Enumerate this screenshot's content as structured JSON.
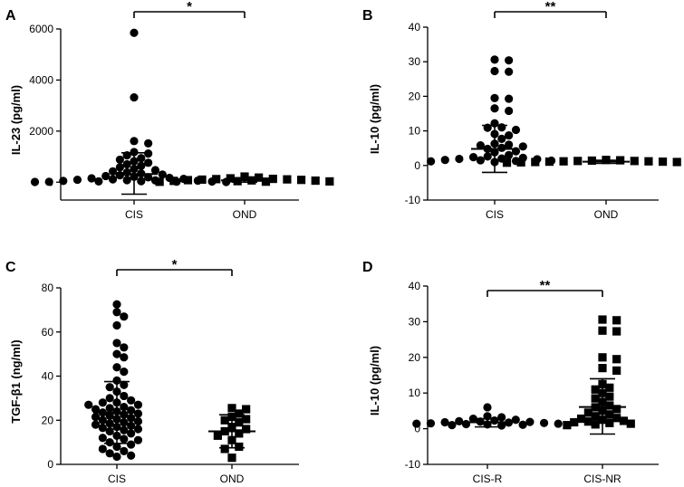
{
  "chart_data": [
    {
      "panel": "A",
      "type": "scatter",
      "title": "",
      "xlabel": "",
      "ylabel": "IL-23 (pg/ml)",
      "ylim": [
        -700,
        6000
      ],
      "yticks": [
        0,
        2000,
        4000,
        6000
      ],
      "groups": [
        "CIS",
        "OND"
      ],
      "marker": [
        "circle",
        "square"
      ],
      "significance": "*",
      "stats": [
        {
          "mean": 320,
          "sd_low": -470,
          "sd_high": 1150
        },
        {
          "mean": 70,
          "sd_low": 0,
          "sd_high": 140
        }
      ],
      "points": [
        [
          5850,
          3320,
          1610,
          1520,
          1180,
          1120,
          1050,
          940,
          880,
          820,
          760,
          700,
          640,
          580,
          520,
          470,
          420,
          380,
          340,
          300,
          270,
          240,
          210,
          190,
          170,
          150,
          130,
          110,
          95,
          80,
          70,
          60,
          50,
          40,
          30,
          25,
          20,
          15,
          10,
          8
        ],
        [
          220,
          180,
          150,
          130,
          120,
          110,
          100,
          90,
          80,
          70,
          60,
          50,
          40,
          30,
          20,
          15
        ]
      ]
    },
    {
      "panel": "B",
      "type": "scatter",
      "title": "",
      "xlabel": "",
      "ylabel": "IL-10 (pg/ml)",
      "ylim": [
        -10,
        40
      ],
      "yticks": [
        -10,
        0,
        10,
        20,
        30,
        40
      ],
      "groups": [
        "CIS",
        "OND"
      ],
      "marker": [
        "circle",
        "square"
      ],
      "significance": "**",
      "stats": [
        {
          "mean": 4.8,
          "sd_low": -2.0,
          "sd_high": 11.6
        },
        {
          "mean": 1.1,
          "sd_low": 0.6,
          "sd_high": 1.5
        }
      ],
      "points": [
        [
          30.6,
          30.4,
          27.3,
          27.1,
          19.5,
          19.3,
          16.5,
          15.8,
          12.2,
          11.0,
          10.9,
          10.3,
          9.1,
          8.7,
          7.7,
          6.3,
          6.0,
          5.8,
          5.5,
          5.1,
          4.8,
          4.1,
          3.8,
          3.0,
          2.6,
          2.4,
          2.2,
          2.0,
          1.9,
          1.8,
          1.6,
          1.5,
          1.4,
          1.3,
          1.2,
          1.0
        ],
        [
          1.6,
          1.5,
          1.4,
          1.3,
          1.3,
          1.2,
          1.2,
          1.1,
          1.1,
          1.0,
          1.0,
          0.9,
          0.9,
          0.8,
          0.8,
          0.7
        ]
      ]
    },
    {
      "panel": "C",
      "type": "scatter",
      "title": "",
      "xlabel": "",
      "ylabel": "TGF-β1 (ng/ml)",
      "ylim": [
        0,
        80
      ],
      "yticks": [
        0,
        20,
        40,
        60,
        80
      ],
      "groups": [
        "CIS",
        "OND"
      ],
      "marker": [
        "circle",
        "square"
      ],
      "significance": "*",
      "stats": [
        {
          "mean": 23.5,
          "sd_low": 9.5,
          "sd_high": 37.5
        },
        {
          "mean": 15.0,
          "sd_low": 7.5,
          "sd_high": 22.5
        }
      ],
      "points": [
        [
          72.5,
          69.0,
          67.0,
          63.0,
          55.0,
          53.0,
          50.0,
          48.5,
          44.0,
          42.0,
          38.0,
          36.0,
          35.0,
          33.0,
          31.0,
          30.0,
          29.0,
          28.0,
          28.0,
          27.0,
          27.0,
          26.0,
          25.5,
          25.0,
          24.5,
          24.0,
          23.5,
          23.0,
          22.5,
          22.0,
          21.5,
          21.0,
          20.5,
          20.0,
          19.5,
          19.0,
          18.5,
          18.0,
          17.5,
          17.0,
          16.5,
          16.0,
          15.5,
          15.0,
          14.0,
          13.0,
          12.0,
          11.5,
          11.0,
          10.0,
          9.0,
          8.0,
          7.0,
          6.0,
          5.0,
          4.0,
          3.5
        ],
        [
          25.5,
          25.0,
          23.0,
          21.5,
          20.5,
          20.0,
          19.0,
          17.0,
          16.0,
          15.0,
          14.0,
          13.0,
          11.0,
          8.0,
          7.0,
          3.0
        ]
      ]
    },
    {
      "panel": "D",
      "type": "scatter",
      "title": "",
      "xlabel": "",
      "ylabel": "IL-10 (pg/ml)",
      "ylim": [
        -10,
        40
      ],
      "yticks": [
        -10,
        0,
        10,
        20,
        30,
        40
      ],
      "groups": [
        "CIS-R",
        "CIS-NR"
      ],
      "marker": [
        "circle",
        "square"
      ],
      "significance": "**",
      "stats": [
        {
          "mean": 1.8,
          "sd_low": 0.5,
          "sd_high": 2.8
        },
        {
          "mean": 6.1,
          "sd_low": -1.5,
          "sd_high": 14.0
        }
      ],
      "points": [
        [
          6.0,
          3.5,
          3.2,
          2.8,
          2.5,
          2.3,
          2.1,
          2.0,
          1.9,
          1.8,
          1.7,
          1.6,
          1.5,
          1.4,
          1.4,
          1.3,
          1.2,
          1.1,
          1.0,
          0.9
        ],
        [
          30.6,
          30.4,
          27.5,
          27.3,
          20.0,
          19.5,
          17.0,
          16.3,
          12.5,
          11.5,
          11.0,
          10.0,
          9.0,
          8.5,
          7.5,
          6.5,
          6.0,
          5.5,
          5.0,
          4.5,
          4.0,
          3.5,
          3.0,
          2.8,
          2.5,
          2.2,
          2.0,
          1.8,
          1.6,
          1.4,
          1.2,
          1.0
        ]
      ]
    }
  ]
}
